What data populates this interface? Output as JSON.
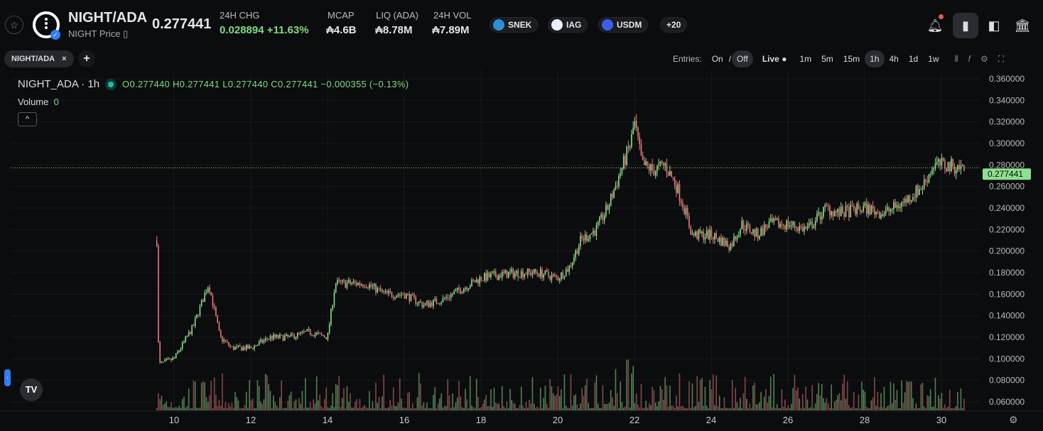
{
  "header": {
    "pair": "NIGHT/ADA",
    "subtitle": "NIGHT Price",
    "price": "0.277441",
    "stats": [
      {
        "label": "24H CHG",
        "value": "0.028894 +11.63%"
      },
      {
        "label": "MCAP",
        "value": "₳4.6B"
      },
      {
        "label": "LIQ (ADA)",
        "value": "₳8.78M"
      },
      {
        "label": "24H VOL",
        "value": "₳7.89M"
      }
    ],
    "chips": [
      {
        "label": "SNEK",
        "color": "#2e8fd8"
      },
      {
        "label": "IAG",
        "color": "#e8eefc"
      },
      {
        "label": "USDM",
        "color": "#3a5ef0"
      },
      {
        "label": "+20"
      }
    ]
  },
  "tabs": [
    {
      "label": "NIGHT/ADA"
    }
  ],
  "toolbar": {
    "entries_label": "Entries:",
    "on": "On",
    "sep": "/",
    "off": "Off",
    "live": "Live",
    "intervals": [
      "1m",
      "5m",
      "15m",
      "1h",
      "4h",
      "1d",
      "1w"
    ],
    "active_interval": "1h"
  },
  "legend": {
    "title": "NIGHT_ADA · 1h",
    "ohlc": "O0.277440 H0.277441 L0.277440 C0.277441 −0.000355 (−0.13%)",
    "volume_label": "Volume",
    "volume_value": "0"
  },
  "chart_data": {
    "type": "candlestick",
    "interval": "1h",
    "last_price": "0.277441",
    "y_ticks": [
      "0.360000",
      "0.340000",
      "0.320000",
      "0.300000",
      "0.280000",
      "0.260000",
      "0.240000",
      "0.220000",
      "0.200000",
      "0.180000",
      "0.160000",
      "0.140000",
      "0.120000",
      "0.100000",
      "0.080000",
      "0.060000"
    ],
    "ylim": [
      0.06,
      0.36
    ],
    "x_ticks": [
      "10",
      "12",
      "14",
      "16",
      "18",
      "20",
      "22",
      "24",
      "26",
      "28",
      "30"
    ],
    "xlim": [
      9.2,
      30.9
    ],
    "price_path": [
      [
        9.55,
        0.21
      ],
      [
        9.6,
        0.095
      ],
      [
        10,
        0.1
      ],
      [
        10.5,
        0.13
      ],
      [
        10.8,
        0.16
      ],
      [
        10.9,
        0.17
      ],
      [
        11.2,
        0.12
      ],
      [
        11.5,
        0.11
      ],
      [
        12,
        0.11
      ],
      [
        12.5,
        0.12
      ],
      [
        13,
        0.12
      ],
      [
        13.5,
        0.125
      ],
      [
        14,
        0.12
      ],
      [
        14.2,
        0.17
      ],
      [
        14.5,
        0.17
      ],
      [
        15,
        0.17
      ],
      [
        15.5,
        0.16
      ],
      [
        16,
        0.16
      ],
      [
        16.5,
        0.15
      ],
      [
        17,
        0.155
      ],
      [
        17.5,
        0.165
      ],
      [
        18,
        0.175
      ],
      [
        18.5,
        0.178
      ],
      [
        19,
        0.18
      ],
      [
        19.5,
        0.18
      ],
      [
        20,
        0.175
      ],
      [
        20.3,
        0.185
      ],
      [
        20.6,
        0.21
      ],
      [
        21,
        0.22
      ],
      [
        21.3,
        0.24
      ],
      [
        21.6,
        0.27
      ],
      [
        21.9,
        0.3
      ],
      [
        22,
        0.32
      ],
      [
        22.2,
        0.28
      ],
      [
        22.5,
        0.275
      ],
      [
        22.8,
        0.28
      ],
      [
        23.1,
        0.26
      ],
      [
        23.3,
        0.24
      ],
      [
        23.5,
        0.215
      ],
      [
        24,
        0.215
      ],
      [
        24.5,
        0.205
      ],
      [
        24.8,
        0.225
      ],
      [
        25.2,
        0.215
      ],
      [
        25.5,
        0.225
      ],
      [
        26,
        0.225
      ],
      [
        26.5,
        0.22
      ],
      [
        27,
        0.24
      ],
      [
        27.3,
        0.235
      ],
      [
        28,
        0.24
      ],
      [
        28.5,
        0.235
      ],
      [
        29,
        0.245
      ],
      [
        29.5,
        0.26
      ],
      [
        29.8,
        0.28
      ],
      [
        30,
        0.28
      ],
      [
        30.6,
        0.2774
      ]
    ],
    "colors": {
      "up": "#8ee08e",
      "down": "#e87a78"
    }
  }
}
